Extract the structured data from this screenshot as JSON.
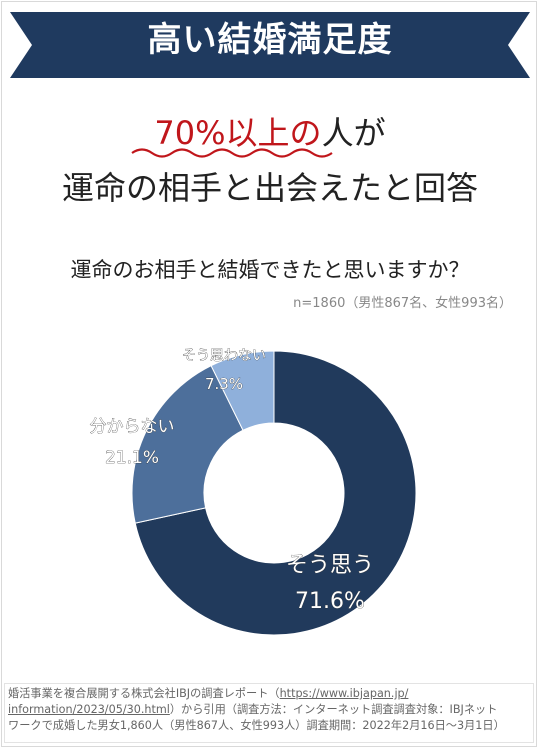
{
  "banner": {
    "title": "高い結婚満足度",
    "color": "#1f3a5f"
  },
  "headline": {
    "highlight": "70%以上の",
    "line1_rest": "人が",
    "line2": "運命の相手と出会えたと回答",
    "highlight_color": "#c0161b"
  },
  "chart_data": {
    "type": "pie",
    "title": "運命のお相手と結婚できたと思いますか？",
    "subtitle": "n=1860（男性867名、女性993名）",
    "donut": true,
    "slices": [
      {
        "label": "そう思う",
        "value": 71.6,
        "display": "71.6%",
        "color": "#213a5c"
      },
      {
        "label": "分からない",
        "value": 21.1,
        "display": "21.1%",
        "color": "#4d6f9b"
      },
      {
        "label": "そう思わない",
        "value": 7.3,
        "display": "7.3%",
        "color": "#8fb0db"
      }
    ]
  },
  "footer": {
    "line1_prefix": "婚活事業を複合展開する株式会社IBJの調査レポート（",
    "link_part1": "https://www.ibjapan.jp/",
    "link_part2": "information/2023/05/30.html",
    "line2_suffix": "）から引用（調査方法：インターネット調査調査対象：IBJネット",
    "line3": "ワークで成婚した男女1,860人（男性867人、女性993人）調査期間：2022年2月16日〜3月1日）"
  }
}
